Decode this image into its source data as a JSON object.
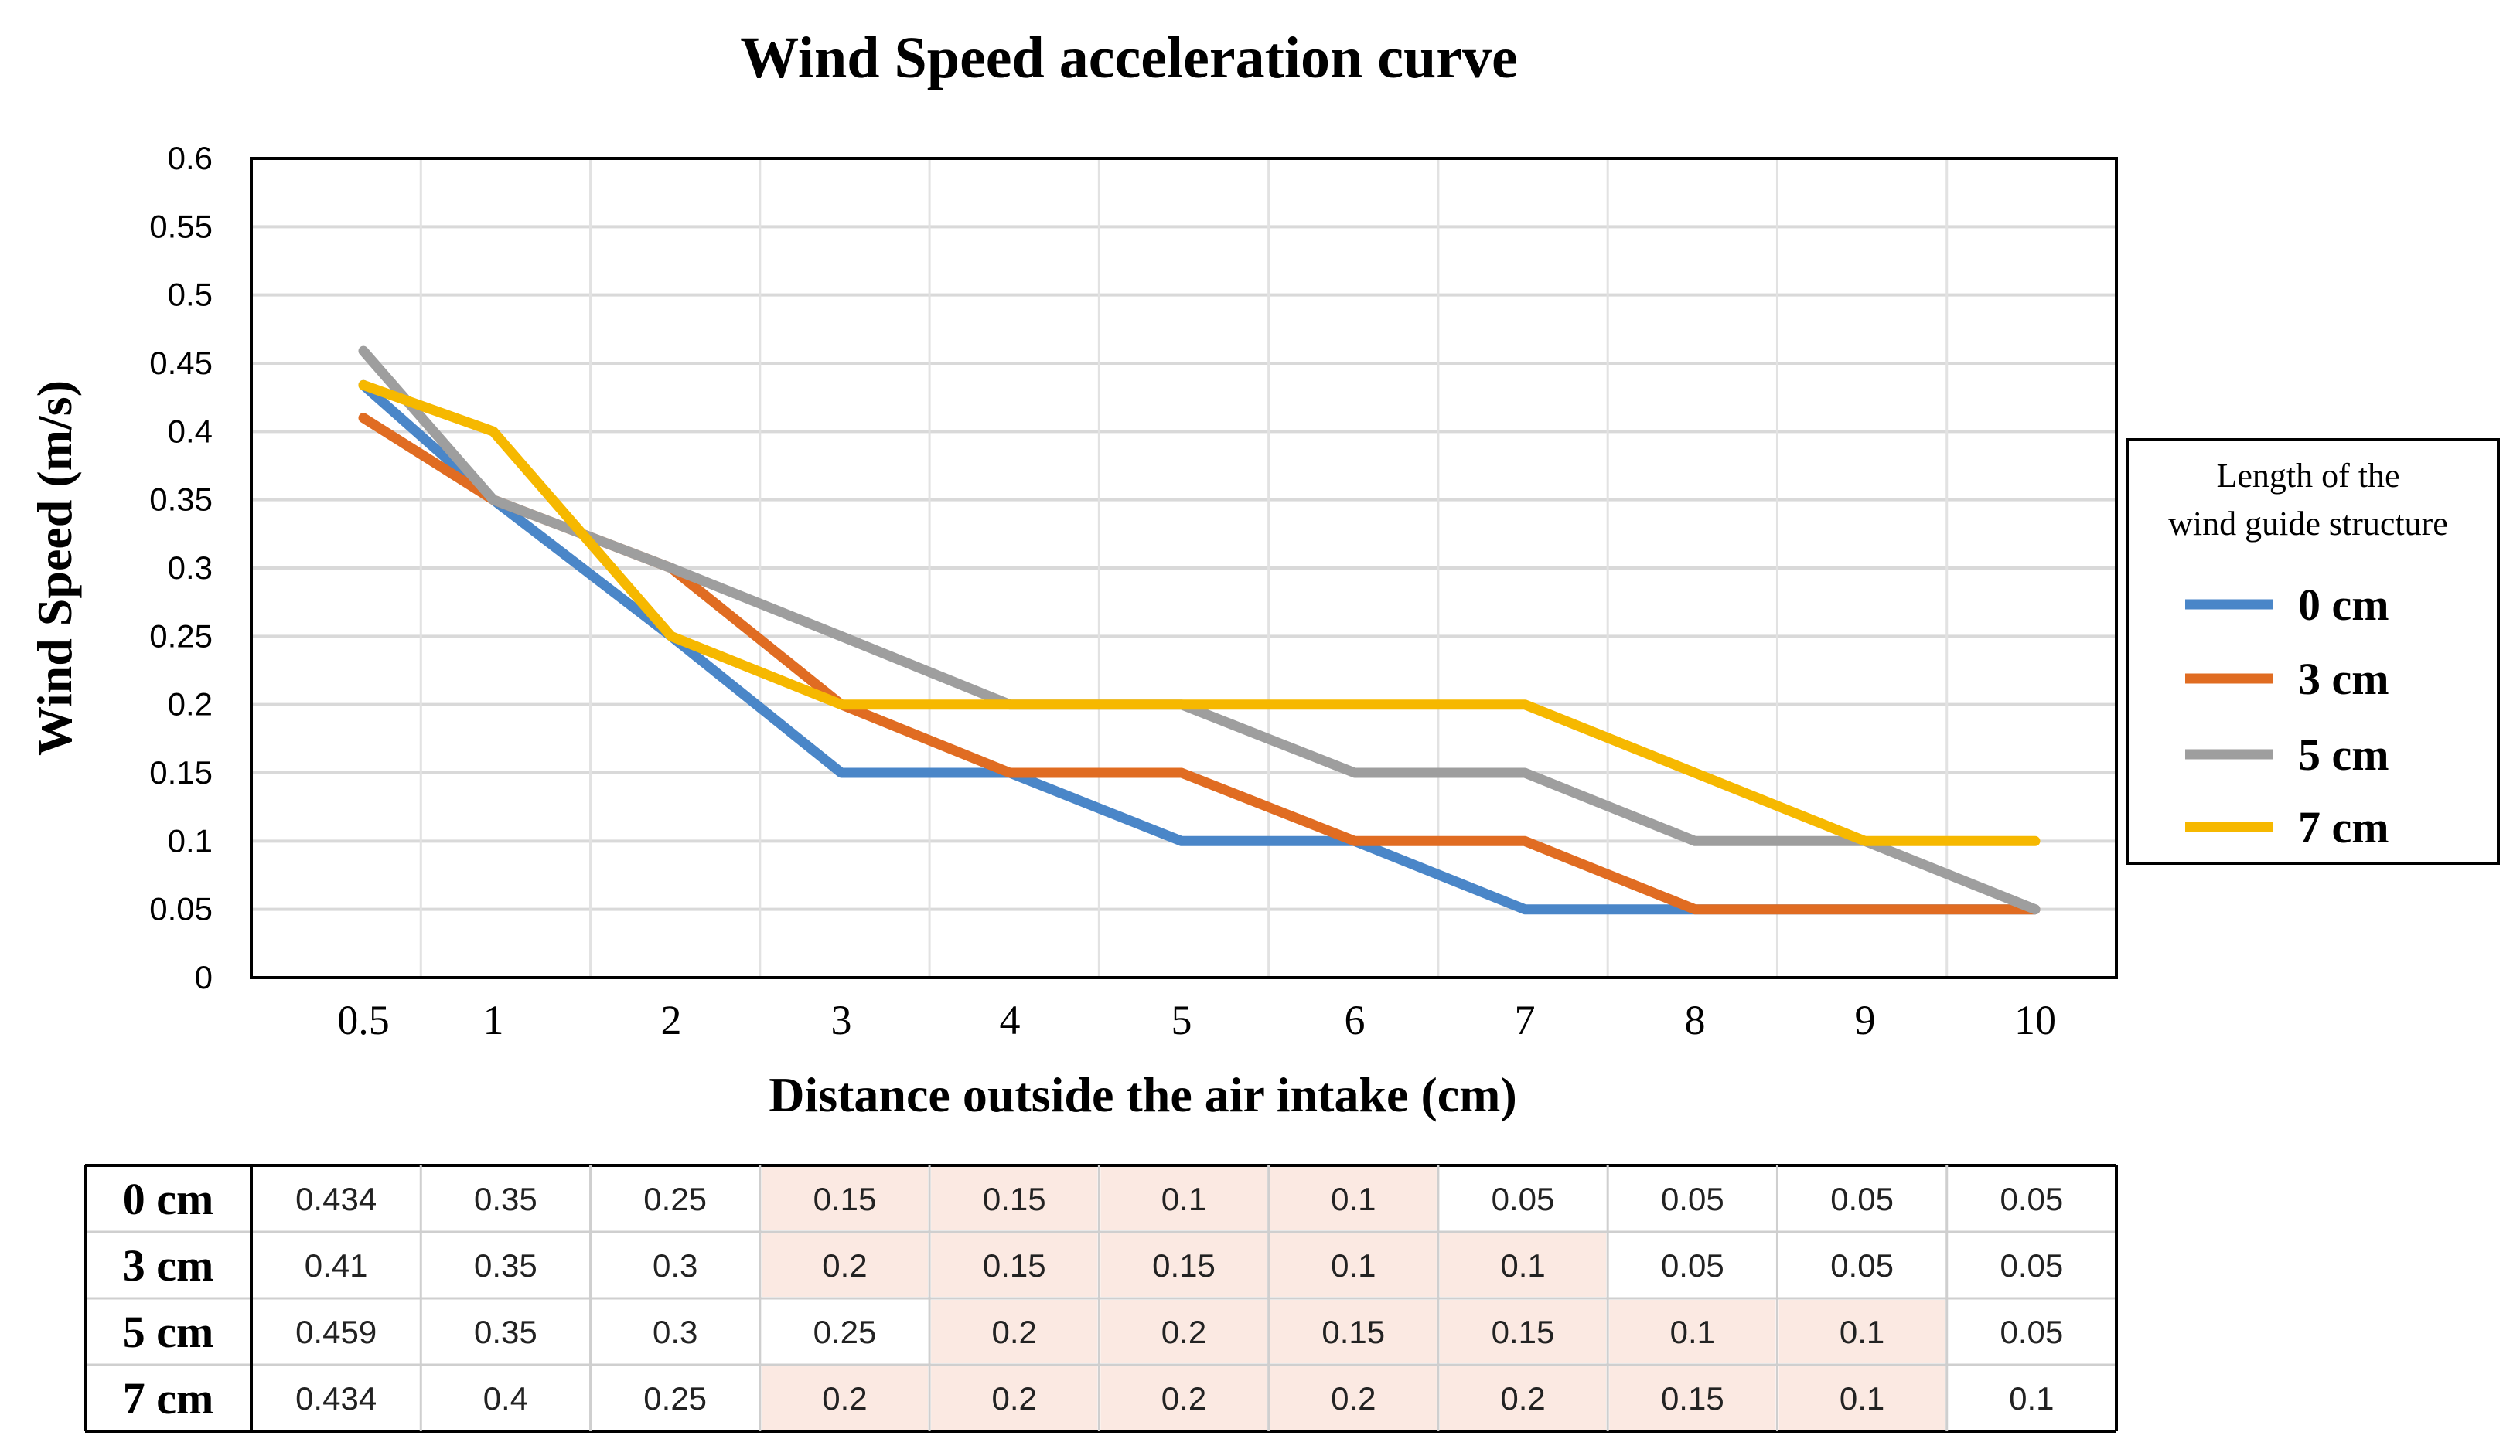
{
  "chart_data": {
    "type": "line",
    "title": "Wind Speed acceleration curve",
    "xlabel": "Distance outside the air intake (cm)",
    "ylabel": "Wind Speed (m/s)",
    "categories": [
      "0.5",
      "1",
      "2",
      "3",
      "4",
      "5",
      "6",
      "7",
      "8",
      "9",
      "10"
    ],
    "ylim": [
      0,
      0.6
    ],
    "yticks": [
      "0",
      "0.05",
      "0.1",
      "0.15",
      "0.2",
      "0.25",
      "0.3",
      "0.35",
      "0.4",
      "0.45",
      "0.5",
      "0.55",
      "0.6"
    ],
    "grid": true,
    "legend": {
      "title_line1": "Length of the",
      "title_line2": "wind guide structure",
      "placement": "right"
    },
    "series": [
      {
        "name": "0 cm",
        "color": "#4a86c8",
        "values": [
          0.434,
          0.35,
          0.25,
          0.15,
          0.15,
          0.1,
          0.1,
          0.05,
          0.05,
          0.05,
          0.05
        ]
      },
      {
        "name": "3 cm",
        "color": "#e06c22",
        "values": [
          0.41,
          0.35,
          0.3,
          0.2,
          0.15,
          0.15,
          0.1,
          0.1,
          0.05,
          0.05,
          0.05
        ]
      },
      {
        "name": "5 cm",
        "color": "#9e9e9e",
        "values": [
          0.459,
          0.35,
          0.3,
          0.25,
          0.2,
          0.2,
          0.15,
          0.15,
          0.1,
          0.1,
          0.05
        ]
      },
      {
        "name": "7 cm",
        "color": "#f6b800",
        "values": [
          0.434,
          0.4,
          0.25,
          0.2,
          0.2,
          0.2,
          0.2,
          0.2,
          0.15,
          0.1,
          0.1
        ]
      }
    ],
    "table": {
      "rows": [
        {
          "label": "0 cm",
          "cells": [
            "0.434",
            "0.35",
            "0.25",
            "0.15",
            "0.15",
            "0.1",
            "0.1",
            "0.05",
            "0.05",
            "0.05",
            "0.05"
          ],
          "highlight": [
            false,
            false,
            false,
            true,
            true,
            true,
            true,
            false,
            false,
            false,
            false
          ]
        },
        {
          "label": "3 cm",
          "cells": [
            "0.41",
            "0.35",
            "0.3",
            "0.2",
            "0.15",
            "0.15",
            "0.1",
            "0.1",
            "0.05",
            "0.05",
            "0.05"
          ],
          "highlight": [
            false,
            false,
            false,
            true,
            true,
            true,
            true,
            true,
            false,
            false,
            false
          ]
        },
        {
          "label": "5 cm",
          "cells": [
            "0.459",
            "0.35",
            "0.3",
            "0.25",
            "0.2",
            "0.2",
            "0.15",
            "0.15",
            "0.1",
            "0.1",
            "0.05"
          ],
          "highlight": [
            false,
            false,
            false,
            false,
            true,
            true,
            true,
            true,
            true,
            true,
            false
          ]
        },
        {
          "label": "7 cm",
          "cells": [
            "0.434",
            "0.4",
            "0.25",
            "0.2",
            "0.2",
            "0.2",
            "0.2",
            "0.2",
            "0.15",
            "0.1",
            "0.1"
          ],
          "highlight": [
            false,
            false,
            false,
            true,
            true,
            true,
            true,
            true,
            true,
            true,
            false
          ]
        }
      ],
      "highlight_color": "#fbe9e2"
    }
  }
}
